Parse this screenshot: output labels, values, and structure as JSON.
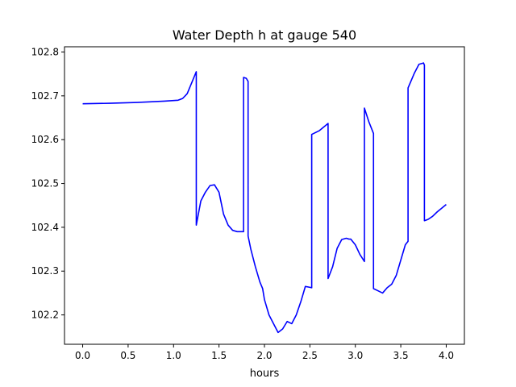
{
  "chart_data": {
    "type": "line",
    "title": "Water Depth h at gauge 540",
    "xlabel": "hours",
    "ylabel": "",
    "xlim": [
      -0.2,
      4.2
    ],
    "ylim": [
      102.133,
      102.812
    ],
    "xticks": [
      0.0,
      0.5,
      1.0,
      1.5,
      2.0,
      2.5,
      3.0,
      3.5,
      4.0
    ],
    "xtick_labels": [
      "0.0",
      "0.5",
      "1.0",
      "1.5",
      "2.0",
      "2.5",
      "3.0",
      "3.5",
      "4.0"
    ],
    "yticks": [
      102.2,
      102.3,
      102.4,
      102.5,
      102.6,
      102.7,
      102.8
    ],
    "ytick_labels": [
      "102.2",
      "102.3",
      "102.4",
      "102.5",
      "102.6",
      "102.7",
      "102.8"
    ],
    "grid": false,
    "series": [
      {
        "color": "#0000ff",
        "x": [
          0.0,
          0.3,
          0.6,
          0.9,
          1.05,
          1.1,
          1.15,
          1.2,
          1.25,
          1.25,
          1.3,
          1.35,
          1.4,
          1.45,
          1.5,
          1.55,
          1.6,
          1.65,
          1.7,
          1.77,
          1.77,
          1.8,
          1.82,
          1.82,
          1.85,
          1.9,
          1.95,
          1.98,
          2.0,
          2.05,
          2.1,
          2.15,
          2.2,
          2.25,
          2.3,
          2.35,
          2.4,
          2.45,
          2.5,
          2.52,
          2.52,
          2.6,
          2.7,
          2.7,
          2.75,
          2.8,
          2.85,
          2.9,
          2.93,
          2.95,
          3.0,
          3.05,
          3.1,
          3.1,
          3.15,
          3.2,
          3.2,
          3.25,
          3.3,
          3.35,
          3.4,
          3.45,
          3.5,
          3.55,
          3.58,
          3.58,
          3.65,
          3.7,
          3.75,
          3.76,
          3.76,
          3.8,
          3.85,
          3.9,
          4.0
        ],
        "y": [
          102.682,
          102.683,
          102.685,
          102.688,
          102.69,
          102.694,
          102.705,
          102.73,
          102.755,
          102.405,
          102.46,
          102.48,
          102.495,
          102.497,
          102.48,
          102.43,
          102.405,
          102.393,
          102.39,
          102.39,
          102.742,
          102.74,
          102.733,
          102.38,
          102.35,
          102.31,
          102.275,
          102.26,
          102.235,
          102.2,
          102.18,
          102.16,
          102.168,
          102.185,
          102.18,
          102.2,
          102.23,
          102.265,
          102.263,
          102.262,
          102.612,
          102.62,
          102.637,
          102.283,
          102.31,
          102.352,
          102.372,
          102.375,
          102.373,
          102.373,
          102.36,
          102.338,
          102.322,
          102.672,
          102.64,
          102.614,
          102.26,
          102.255,
          102.25,
          102.262,
          102.27,
          102.29,
          102.325,
          102.36,
          102.368,
          102.718,
          102.752,
          102.772,
          102.775,
          102.77,
          102.415,
          102.418,
          102.425,
          102.435,
          102.452
        ]
      }
    ]
  }
}
